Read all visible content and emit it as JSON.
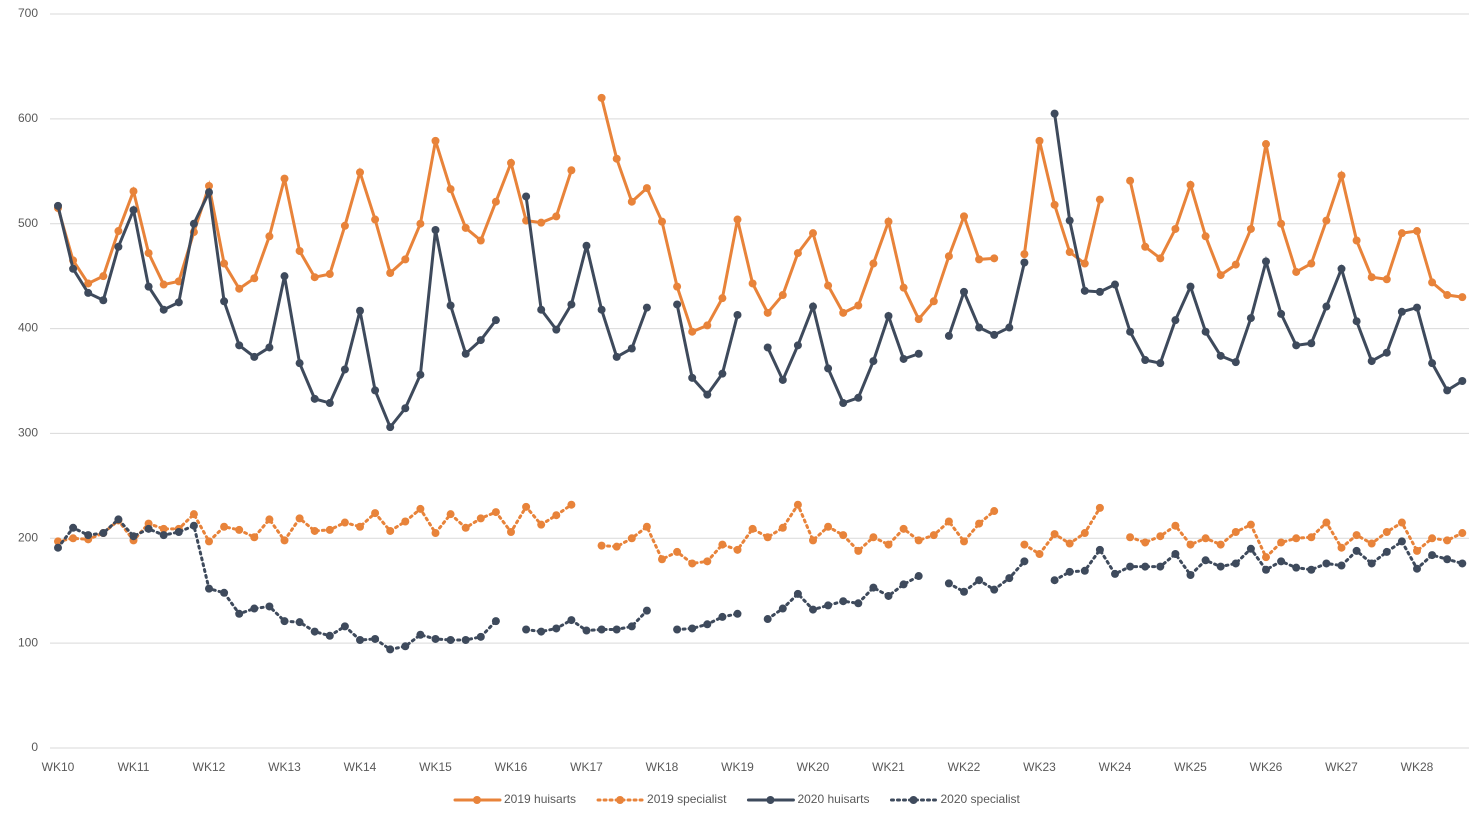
{
  "chart_data": {
    "type": "line",
    "categories": [
      "WK10",
      null,
      null,
      null,
      null,
      "WK11",
      null,
      null,
      null,
      null,
      "WK12",
      null,
      null,
      null,
      null,
      "WK13",
      null,
      null,
      null,
      null,
      "WK14",
      null,
      null,
      null,
      null,
      "WK15",
      null,
      null,
      null,
      null,
      "WK16",
      null,
      null,
      null,
      null,
      "WK17",
      null,
      null,
      null,
      null,
      "WK18",
      null,
      null,
      null,
      null,
      "WK19",
      null,
      null,
      null,
      null,
      "WK20",
      null,
      null,
      null,
      null,
      "WK21",
      null,
      null,
      null,
      null,
      "WK22",
      null,
      null,
      null,
      null,
      "WK23",
      null,
      null,
      null,
      null,
      "WK24",
      null,
      null,
      null,
      null,
      "WK25",
      null,
      null,
      null,
      null,
      "WK26",
      null,
      null,
      null,
      null,
      "WK27",
      null,
      null,
      null,
      null,
      "WK28",
      null,
      null,
      null
    ],
    "ylim": [
      0,
      700
    ],
    "yticks": [
      0,
      100,
      200,
      300,
      400,
      500,
      600,
      700
    ],
    "grid": true,
    "legend": "bottom",
    "series": [
      {
        "name": "2019 huisarts",
        "color": "#e8833a",
        "line_style": "solid",
        "values": [
          515,
          465,
          443,
          450,
          493,
          531,
          472,
          442,
          445,
          492,
          536,
          462,
          438,
          448,
          488,
          543,
          474,
          449,
          452,
          498,
          549,
          504,
          453,
          466,
          500,
          579,
          533,
          496,
          484,
          521,
          558,
          503,
          501,
          507,
          551,
          null,
          620,
          562,
          521,
          534,
          502,
          440,
          397,
          403,
          429,
          504,
          443,
          415,
          432,
          472,
          491,
          441,
          415,
          422,
          462,
          502,
          439,
          409,
          426,
          469,
          507,
          466,
          467,
          null,
          471,
          579,
          518,
          473,
          462,
          523,
          null,
          541,
          478,
          467,
          495,
          537,
          488,
          451,
          461,
          495,
          576,
          500,
          454,
          462,
          503,
          546,
          484,
          449,
          447,
          491,
          493,
          444,
          432,
          430
        ]
      },
      {
        "name": "2019 specialist",
        "color": "#e8833a",
        "line_style": "dotted",
        "values": [
          197,
          200,
          199,
          205,
          217,
          198,
          214,
          209,
          209,
          223,
          197,
          211,
          208,
          201,
          218,
          198,
          219,
          207,
          208,
          215,
          211,
          224,
          207,
          216,
          228,
          205,
          223,
          210,
          219,
          225,
          206,
          230,
          213,
          222,
          232,
          null,
          193,
          192,
          200,
          211,
          180,
          187,
          176,
          178,
          194,
          189,
          209,
          201,
          210,
          232,
          198,
          211,
          203,
          188,
          201,
          194,
          209,
          198,
          203,
          216,
          197,
          214,
          226,
          null,
          194,
          185,
          204,
          195,
          205,
          229,
          null,
          201,
          196,
          202,
          212,
          194,
          200,
          194,
          206,
          213,
          182,
          196,
          200,
          201,
          215,
          191,
          203,
          195,
          206,
          215,
          188,
          200,
          198,
          205
        ]
      },
      {
        "name": "2020 huisarts",
        "color": "#3e4a5c",
        "line_style": "solid",
        "values": [
          517,
          457,
          434,
          427,
          478,
          513,
          440,
          418,
          425,
          500,
          530,
          426,
          384,
          373,
          382,
          450,
          367,
          333,
          329,
          361,
          417,
          341,
          306,
          324,
          356,
          494,
          422,
          376,
          389,
          408,
          null,
          526,
          418,
          399,
          423,
          479,
          418,
          373,
          381,
          420,
          null,
          423,
          353,
          337,
          357,
          413,
          null,
          382,
          351,
          384,
          421,
          362,
          329,
          334,
          369,
          412,
          371,
          376,
          null,
          393,
          435,
          401,
          394,
          401,
          463,
          null,
          605,
          503,
          436,
          435,
          442,
          397,
          370,
          367,
          408,
          440,
          397,
          374,
          368,
          410,
          464,
          414,
          384,
          386,
          421,
          457,
          407,
          369,
          377,
          416,
          420,
          367,
          341,
          350
        ]
      },
      {
        "name": "2020 specialist",
        "color": "#3e4a5c",
        "line_style": "dotted",
        "values": [
          191,
          210,
          203,
          205,
          218,
          202,
          209,
          203,
          206,
          212,
          152,
          148,
          128,
          133,
          135,
          121,
          120,
          111,
          107,
          116,
          103,
          104,
          94,
          97,
          108,
          104,
          103,
          103,
          106,
          121,
          null,
          113,
          111,
          114,
          122,
          112,
          113,
          113,
          116,
          131,
          null,
          113,
          114,
          118,
          125,
          128,
          null,
          123,
          133,
          147,
          132,
          136,
          140,
          138,
          153,
          145,
          156,
          164,
          null,
          157,
          149,
          160,
          151,
          162,
          178,
          null,
          160,
          168,
          169,
          189,
          166,
          173,
          173,
          173,
          185,
          165,
          179,
          173,
          176,
          190,
          170,
          178,
          172,
          170,
          176,
          174,
          188,
          176,
          187,
          197,
          171,
          184,
          180,
          176
        ]
      }
    ]
  }
}
